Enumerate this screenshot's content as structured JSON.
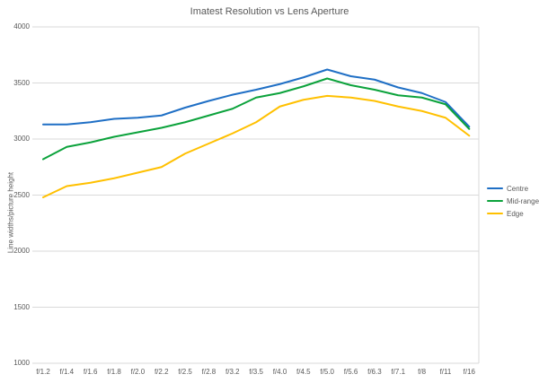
{
  "chart_data": {
    "type": "line",
    "title": "Imatest Resolution vs Lens Aperture",
    "xlabel": "",
    "ylabel": "Line widths/picture height",
    "ylim": [
      1000,
      4000
    ],
    "yticks": [
      4000,
      3500,
      3000,
      2500,
      2000,
      1500,
      1000
    ],
    "grid": true,
    "legend_position": "right",
    "categories": [
      "f/1.2",
      "f/1.4",
      "f/1.6",
      "f/1.8",
      "f/2.0",
      "f/2.2",
      "f/2.5",
      "f/2.8",
      "f/3.2",
      "f/3.5",
      "f/4.0",
      "f/4.5",
      "f/5.0",
      "f/5.6",
      "f/6.3",
      "f/7.1",
      "f/8",
      "f/11",
      "f/16"
    ],
    "series": [
      {
        "name": "Centre",
        "color": "#1F6FC5",
        "values": [
          3130,
          3130,
          3150,
          3180,
          3190,
          3210,
          3280,
          3340,
          3395,
          3440,
          3490,
          3550,
          3620,
          3560,
          3530,
          3460,
          3410,
          3330,
          3110
        ]
      },
      {
        "name": "Mid-range",
        "color": "#0BA23B",
        "values": [
          2820,
          2930,
          2970,
          3020,
          3060,
          3100,
          3150,
          3210,
          3270,
          3370,
          3410,
          3470,
          3540,
          3480,
          3440,
          3390,
          3370,
          3310,
          3090
        ]
      },
      {
        "name": "Edge",
        "color": "#FFC000",
        "values": [
          2480,
          2580,
          2610,
          2650,
          2700,
          2750,
          2870,
          2960,
          3050,
          3150,
          3290,
          3350,
          3385,
          3370,
          3340,
          3290,
          3250,
          3190,
          3030
        ]
      }
    ],
    "colors": {
      "gridline": "#D9D9D9",
      "text": "#595959"
    }
  }
}
